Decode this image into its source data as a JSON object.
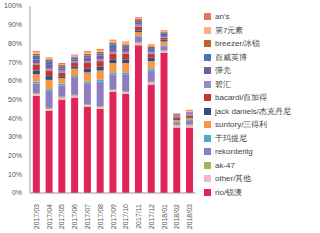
{
  "chart_data": {
    "type": "bar",
    "stacked": true,
    "grid": false,
    "legend": "right",
    "categories": [
      "2017/03",
      "2017/04",
      "2017/05",
      "2017/06",
      "2017/07",
      "2017/08",
      "2017/09",
      "2017/10",
      "2017/11",
      "2017/12",
      "2018/01",
      "2018/02",
      "2018/03"
    ],
    "ylim": [
      0,
      100
    ],
    "yticks": [
      {
        "value": 0,
        "label": "0%"
      },
      {
        "value": 10,
        "label": "10%"
      },
      {
        "value": 20,
        "label": "20%"
      },
      {
        "value": 30,
        "label": "30%"
      },
      {
        "value": 40,
        "label": "40%"
      },
      {
        "value": 50,
        "label": "50%"
      },
      {
        "value": 60,
        "label": "60%"
      },
      {
        "value": 70,
        "label": "70%"
      },
      {
        "value": 80,
        "label": "80%"
      },
      {
        "value": 90,
        "label": "90%"
      },
      {
        "value": 100,
        "label": "100%"
      }
    ],
    "series": [
      {
        "name": "an's",
        "color": "#e8735f",
        "values": [
          0.5,
          0.5,
          0.5,
          0.5,
          0.5,
          0.5,
          0.5,
          0.5,
          0.5,
          0.5,
          0.5,
          0,
          0.5
        ]
      },
      {
        "name": "第7元素",
        "color": "#f7b27a",
        "values": [
          1,
          0.5,
          0.5,
          0.5,
          1,
          1,
          1,
          1,
          0.5,
          0.5,
          0.5,
          0,
          0.5
        ]
      },
      {
        "name": "breezer/冰锐",
        "color": "#c0622a",
        "values": [
          1,
          1,
          1,
          0.5,
          1,
          1,
          1,
          1,
          1,
          1,
          0.5,
          0.5,
          0.5
        ]
      },
      {
        "name": "百威英博",
        "color": "#4472c4",
        "values": [
          2,
          2,
          1,
          1,
          1,
          1,
          2,
          1,
          1,
          1,
          1,
          0.5,
          0.5
        ]
      },
      {
        "name": "弹壳",
        "color": "#7a5c9e",
        "values": [
          2,
          2,
          1,
          1,
          2,
          2,
          2,
          2,
          1,
          1,
          1,
          0.5,
          0.5
        ]
      },
      {
        "name": "碧汇",
        "color": "#9b8ac4",
        "values": [
          1,
          1,
          1,
          1,
          1,
          1,
          1,
          1,
          1,
          1,
          0.5,
          0.5,
          0.5
        ]
      },
      {
        "name": "bacardi/百加得",
        "color": "#c0392b",
        "values": [
          3,
          3,
          2,
          2,
          3,
          3,
          3,
          3,
          2,
          2,
          1,
          1,
          1
        ]
      },
      {
        "name": "jack daniels/杰克丹尼",
        "color": "#2e4d8c",
        "values": [
          2,
          2,
          1,
          1,
          2,
          2,
          2,
          2,
          1,
          2,
          1,
          0.5,
          0.5
        ]
      },
      {
        "name": "suntory/三得利",
        "color": "#f79646",
        "values": [
          4,
          5,
          3,
          4,
          5,
          5,
          5,
          5,
          2,
          4,
          2,
          1,
          1
        ]
      },
      {
        "name": "干玛提尼",
        "color": "#4bacc6",
        "values": [
          1,
          1,
          1,
          1,
          1,
          1,
          1,
          1,
          0.5,
          1,
          0.5,
          0.5,
          0.5
        ]
      },
      {
        "name": "rekorderlig",
        "color": "#8e7cc3",
        "values": [
          5,
          9,
          6,
          9,
          11,
          13,
          8,
          9,
          3,
          6,
          2,
          1,
          2
        ]
      },
      {
        "name": "ak-47",
        "color": "#9bbb59",
        "values": [
          0.5,
          0.5,
          0.5,
          0.5,
          0.5,
          0.5,
          0.5,
          0.5,
          0.5,
          0.5,
          0.5,
          0.5,
          0.5
        ]
      },
      {
        "name": "other/其他",
        "color": "#f4b6c2",
        "values": [
          1,
          1,
          1,
          1,
          1,
          1,
          1,
          1,
          1,
          1,
          1,
          1,
          1
        ]
      },
      {
        "name": "rio/锐澳",
        "color": "#e0245a",
        "values": [
          52,
          44,
          50,
          51,
          46,
          45,
          54,
          53,
          79,
          58,
          75,
          35,
          35
        ]
      }
    ]
  }
}
